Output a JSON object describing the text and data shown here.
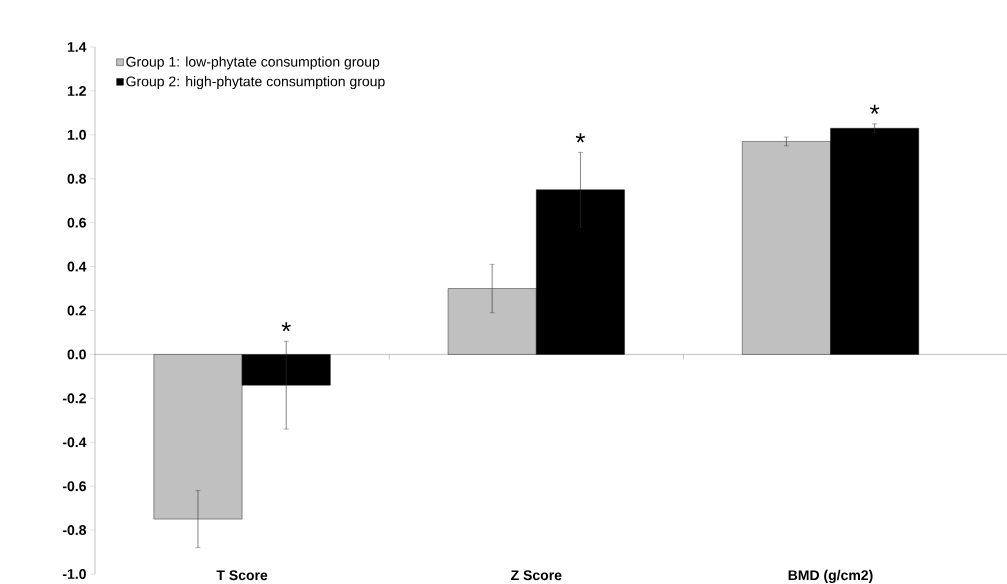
{
  "chart_data": {
    "type": "bar",
    "categories": [
      "T Score",
      "Z Score",
      "BMD (g/cm2)"
    ],
    "series": [
      {
        "name": "Group 1: low-phytate consumption group",
        "color": "#c0c0c0",
        "values": [
          -0.75,
          0.3,
          0.97
        ],
        "errors": [
          0.13,
          0.11,
          0.02
        ]
      },
      {
        "name": "Group 2: high-phytate consumption group",
        "color": "#000000",
        "values": [
          -0.14,
          0.75,
          1.03
        ],
        "errors": [
          0.2,
          0.17,
          0.02
        ]
      }
    ],
    "ylim": [
      -1.0,
      1.4
    ],
    "yticks": [
      {
        "value": -1.0,
        "label": "-1.0"
      },
      -0.8,
      -0.6,
      -0.4,
      -0.2,
      {
        "value": 0,
        "label": "0.0"
      },
      0.2,
      0.4,
      0.6,
      0.8,
      {
        "value": 1.0,
        "label": "1.0"
      },
      1.2,
      1.4
    ],
    "annotations": [
      "*",
      "*",
      "*"
    ],
    "legend": "top left"
  }
}
